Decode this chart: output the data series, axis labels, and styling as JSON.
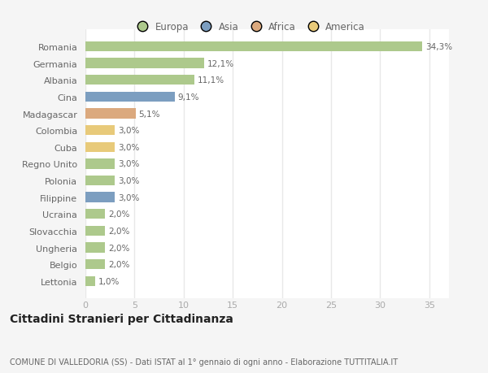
{
  "categories": [
    "Romania",
    "Germania",
    "Albania",
    "Cina",
    "Madagascar",
    "Colombia",
    "Cuba",
    "Regno Unito",
    "Polonia",
    "Filippine",
    "Ucraina",
    "Slovacchia",
    "Ungheria",
    "Belgio",
    "Lettonia"
  ],
  "values": [
    34.3,
    12.1,
    11.1,
    9.1,
    5.1,
    3.0,
    3.0,
    3.0,
    3.0,
    3.0,
    2.0,
    2.0,
    2.0,
    2.0,
    1.0
  ],
  "labels": [
    "34,3%",
    "12,1%",
    "11,1%",
    "9,1%",
    "5,1%",
    "3,0%",
    "3,0%",
    "3,0%",
    "3,0%",
    "3,0%",
    "2,0%",
    "2,0%",
    "2,0%",
    "2,0%",
    "1,0%"
  ],
  "colors": [
    "#adc98c",
    "#adc98c",
    "#adc98c",
    "#7c9ec0",
    "#dba97e",
    "#e8ca7a",
    "#e8ca7a",
    "#adc98c",
    "#adc98c",
    "#7c9ec0",
    "#adc98c",
    "#adc98c",
    "#adc98c",
    "#adc98c",
    "#adc98c"
  ],
  "legend": [
    {
      "label": "Europa",
      "color": "#adc98c"
    },
    {
      "label": "Asia",
      "color": "#7c9ec0"
    },
    {
      "label": "Africa",
      "color": "#dba97e"
    },
    {
      "label": "America",
      "color": "#e8ca7a"
    }
  ],
  "title": "Cittadini Stranieri per Cittadinanza",
  "subtitle": "COMUNE DI VALLEDORIA (SS) - Dati ISTAT al 1° gennaio di ogni anno - Elaborazione TUTTITALIA.IT",
  "xlim": [
    0,
    37
  ],
  "xticks": [
    0,
    5,
    10,
    15,
    20,
    25,
    30,
    35
  ],
  "plot_bg": "#ffffff",
  "fig_bg": "#f5f5f5",
  "grid_color": "#e8e8e8",
  "bar_height": 0.6
}
